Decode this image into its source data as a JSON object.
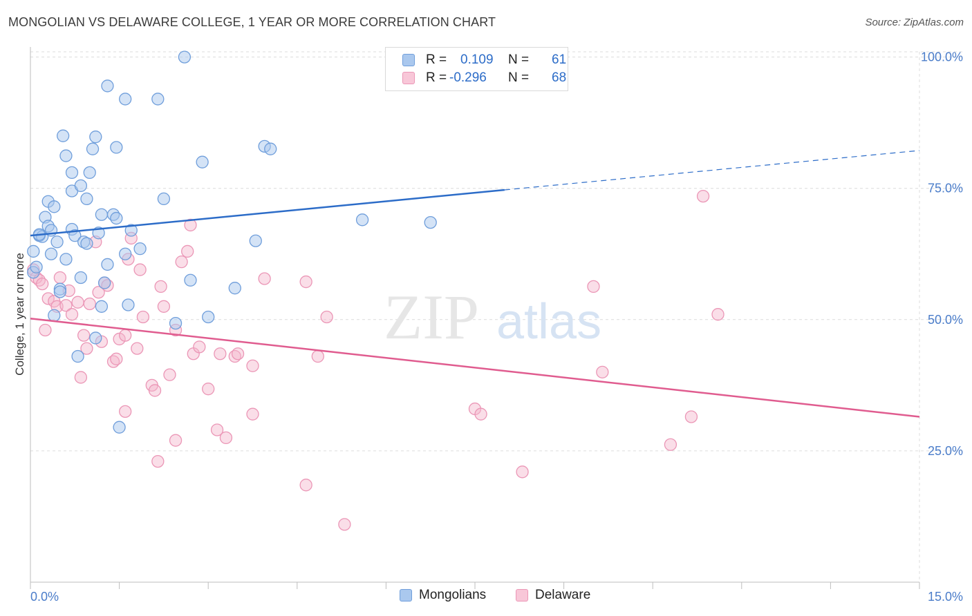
{
  "title": "MONGOLIAN VS DELAWARE COLLEGE, 1 YEAR OR MORE CORRELATION CHART",
  "source": "Source: ZipAtlas.com",
  "watermark": {
    "zip": "ZIP",
    "atlas": "atlas"
  },
  "colors": {
    "blue": "#2c6cc8",
    "blue_fill": "#aac8ee",
    "pink": "#e05c8f",
    "pink_fill": "#f5b6cb",
    "tick": "#4a7cc9",
    "grid": "#dcdcdc"
  },
  "legend": {
    "r_label": "R =",
    "n_label": "N =",
    "series": [
      {
        "name": "Mongolians",
        "r": "0.109",
        "n": "61"
      },
      {
        "name": "Delaware",
        "r": "-0.296",
        "n": "68"
      }
    ]
  },
  "chart_data": {
    "type": "scatter",
    "title": "MONGOLIAN VS DELAWARE COLLEGE, 1 YEAR OR MORE CORRELATION CHART",
    "xlabel": "",
    "ylabel": "College, 1 year or more",
    "xlim": [
      0,
      15
    ],
    "ylim": [
      0,
      101
    ],
    "x_tick_labels": [
      "0.0%",
      "15.0%"
    ],
    "y_ticks": [
      25,
      50,
      75,
      100
    ],
    "y_tick_labels": [
      "25.0%",
      "50.0%",
      "75.0%",
      "100.0%"
    ],
    "grid": true,
    "series": [
      {
        "name": "Mongolians",
        "color": "#2c6cc8",
        "trend": {
          "x0": 0,
          "y0": 66.0,
          "x1": 8.0,
          "y1": 74.7,
          "dash_to_x": 15.0,
          "dash_to_y": 82.2
        },
        "points": [
          [
            0.05,
            63.0
          ],
          [
            0.05,
            59.0
          ],
          [
            0.15,
            66.0
          ],
          [
            0.2,
            65.8
          ],
          [
            0.25,
            69.5
          ],
          [
            0.3,
            67.8
          ],
          [
            0.3,
            72.5
          ],
          [
            0.35,
            67.0
          ],
          [
            0.35,
            62.5
          ],
          [
            0.4,
            71.5
          ],
          [
            0.4,
            50.8
          ],
          [
            0.45,
            64.8
          ],
          [
            0.5,
            55.8
          ],
          [
            0.5,
            55.3
          ],
          [
            0.55,
            85.0
          ],
          [
            0.6,
            81.2
          ],
          [
            0.6,
            61.5
          ],
          [
            0.7,
            74.5
          ],
          [
            0.7,
            67.2
          ],
          [
            0.7,
            78.0
          ],
          [
            0.75,
            66.0
          ],
          [
            0.8,
            43.0
          ],
          [
            0.85,
            75.5
          ],
          [
            0.85,
            58.0
          ],
          [
            0.9,
            64.8
          ],
          [
            0.95,
            73.0
          ],
          [
            0.95,
            64.5
          ],
          [
            1.0,
            78.0
          ],
          [
            1.05,
            82.5
          ],
          [
            1.1,
            84.8
          ],
          [
            1.1,
            46.5
          ],
          [
            1.15,
            66.5
          ],
          [
            1.2,
            52.5
          ],
          [
            1.2,
            70.0
          ],
          [
            1.25,
            57.0
          ],
          [
            1.3,
            94.5
          ],
          [
            1.3,
            60.5
          ],
          [
            1.4,
            70.0
          ],
          [
            1.45,
            82.8
          ],
          [
            1.45,
            69.3
          ],
          [
            1.5,
            29.5
          ],
          [
            1.6,
            62.5
          ],
          [
            1.6,
            92.0
          ],
          [
            1.65,
            52.8
          ],
          [
            1.7,
            67.0
          ],
          [
            1.85,
            63.5
          ],
          [
            2.15,
            92.0
          ],
          [
            2.25,
            73.0
          ],
          [
            2.45,
            49.3
          ],
          [
            2.6,
            100.0
          ],
          [
            2.7,
            57.5
          ],
          [
            2.9,
            80.0
          ],
          [
            3.0,
            50.5
          ],
          [
            3.45,
            56.0
          ],
          [
            3.8,
            65.0
          ],
          [
            3.95,
            83.0
          ],
          [
            4.05,
            82.5
          ],
          [
            5.6,
            69.0
          ],
          [
            6.75,
            68.5
          ],
          [
            0.1,
            60.0
          ],
          [
            0.15,
            66.2
          ]
        ]
      },
      {
        "name": "Delaware",
        "color": "#e05c8f",
        "trend": {
          "x0": 0,
          "y0": 50.2,
          "x1": 15.0,
          "y1": 31.5
        },
        "points": [
          [
            0.05,
            59.5
          ],
          [
            0.1,
            58.0
          ],
          [
            0.15,
            57.5
          ],
          [
            0.2,
            56.8
          ],
          [
            0.25,
            48.0
          ],
          [
            0.3,
            54.0
          ],
          [
            0.4,
            53.5
          ],
          [
            0.45,
            52.5
          ],
          [
            0.5,
            58.0
          ],
          [
            0.6,
            52.7
          ],
          [
            0.65,
            55.5
          ],
          [
            0.7,
            51.0
          ],
          [
            0.8,
            53.3
          ],
          [
            0.85,
            39.0
          ],
          [
            0.9,
            47.0
          ],
          [
            0.95,
            44.5
          ],
          [
            1.0,
            53.0
          ],
          [
            1.1,
            64.8
          ],
          [
            1.15,
            55.2
          ],
          [
            1.2,
            45.8
          ],
          [
            1.25,
            57.0
          ],
          [
            1.3,
            56.5
          ],
          [
            1.4,
            42.0
          ],
          [
            1.45,
            42.5
          ],
          [
            1.5,
            46.3
          ],
          [
            1.6,
            47.0
          ],
          [
            1.6,
            32.5
          ],
          [
            1.65,
            61.5
          ],
          [
            1.7,
            65.5
          ],
          [
            1.8,
            44.5
          ],
          [
            1.85,
            59.5
          ],
          [
            1.9,
            50.5
          ],
          [
            2.05,
            37.5
          ],
          [
            2.1,
            36.5
          ],
          [
            2.15,
            23.0
          ],
          [
            2.2,
            56.3
          ],
          [
            2.25,
            52.5
          ],
          [
            2.35,
            39.5
          ],
          [
            2.45,
            27.0
          ],
          [
            2.45,
            48.0
          ],
          [
            2.55,
            61.0
          ],
          [
            2.65,
            63.0
          ],
          [
            2.7,
            68.0
          ],
          [
            2.75,
            43.5
          ],
          [
            2.85,
            44.8
          ],
          [
            3.0,
            36.8
          ],
          [
            3.15,
            29.0
          ],
          [
            3.2,
            43.5
          ],
          [
            3.3,
            27.5
          ],
          [
            3.45,
            43.0
          ],
          [
            3.5,
            43.5
          ],
          [
            3.75,
            32.0
          ],
          [
            3.75,
            41.2
          ],
          [
            3.95,
            57.8
          ],
          [
            4.65,
            18.5
          ],
          [
            4.65,
            57.2
          ],
          [
            4.85,
            43.0
          ],
          [
            5.0,
            50.5
          ],
          [
            5.3,
            11.0
          ],
          [
            7.5,
            33.0
          ],
          [
            7.6,
            32.0
          ],
          [
            8.3,
            21.0
          ],
          [
            9.5,
            56.3
          ],
          [
            9.65,
            40.0
          ],
          [
            10.8,
            26.2
          ],
          [
            11.15,
            31.5
          ],
          [
            11.35,
            73.5
          ],
          [
            11.6,
            51.0
          ]
        ]
      }
    ]
  }
}
